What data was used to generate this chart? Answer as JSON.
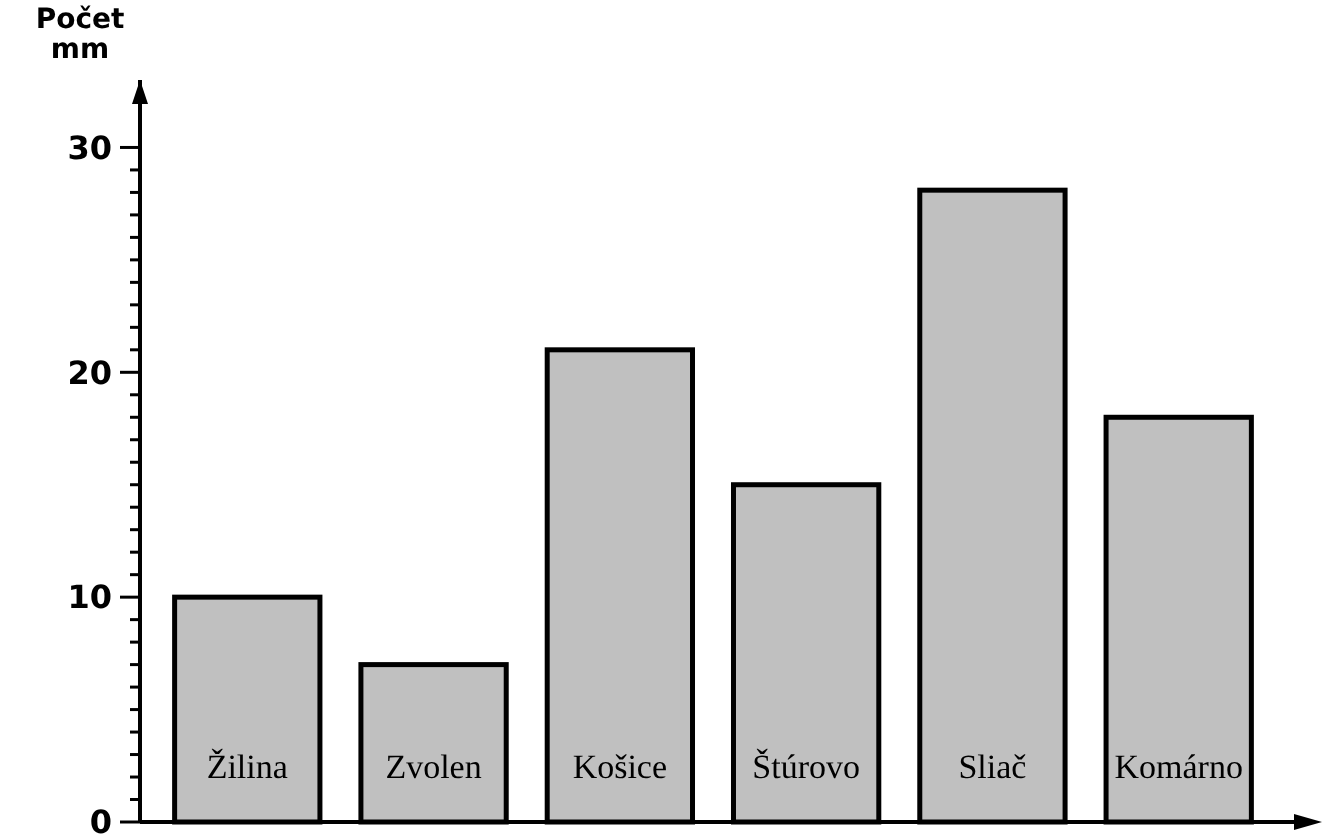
{
  "chart_data": {
    "type": "bar",
    "ylabel": "Počet mm",
    "categories": [
      "Žilina",
      "Zvolen",
      "Košice",
      "Štúrovo",
      "Sliač",
      "Komárno"
    ],
    "values": [
      10,
      7,
      21,
      15,
      28.1,
      18
    ],
    "color": "#c0c0c0",
    "ylim": [
      0,
      33
    ],
    "yticks": [
      0,
      {
        "value": 1,
        "label": null
      },
      {
        "value": 2,
        "label": null
      },
      {
        "value": 3,
        "label": null
      },
      {
        "value": 4,
        "label": null
      },
      {
        "value": 5,
        "label": null
      },
      {
        "value": 6,
        "label": null
      },
      {
        "value": 7,
        "label": null
      },
      {
        "value": 8,
        "label": null
      },
      {
        "value": 9,
        "label": null
      },
      10,
      {
        "value": 11,
        "label": null
      },
      {
        "value": 12,
        "label": null
      },
      {
        "value": 13,
        "label": null
      },
      {
        "value": 14,
        "label": null
      },
      {
        "value": 15,
        "label": null
      },
      {
        "value": 16,
        "label": null
      },
      {
        "value": 17,
        "label": null
      },
      {
        "value": 18,
        "label": null
      },
      {
        "value": 19,
        "label": null
      },
      20,
      {
        "value": 21,
        "label": null
      },
      {
        "value": 22,
        "label": null
      },
      {
        "value": 23,
        "label": null
      },
      {
        "value": 24,
        "label": null
      },
      {
        "value": 25,
        "label": null
      },
      {
        "value": 26,
        "label": null
      },
      {
        "value": 27,
        "label": null
      },
      {
        "value": 28,
        "label": null
      },
      {
        "value": 29,
        "label": null
      },
      30
    ],
    "grid": false
  }
}
